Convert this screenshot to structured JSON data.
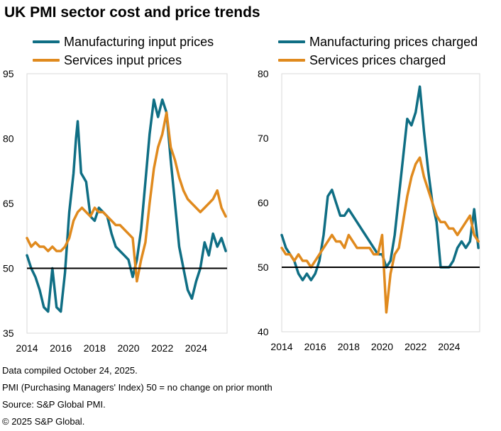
{
  "header": {
    "title": "UK PMI sector cost and price trends"
  },
  "colors": {
    "manufacturing": "#0f6e84",
    "services": "#e08a1e",
    "axis": "#000000",
    "frame": "#d9d9d9"
  },
  "footer": {
    "line1": "Data compiled October 24, 2025.",
    "line2": "PMI (Purchasing Managers' Index) 50 = no change on prior month",
    "line3": "Source: S&P Global PMI.",
    "line4": "© 2025 S&P Global."
  },
  "chart_data": [
    {
      "type": "line",
      "title": "",
      "legend": [
        "Manufacturing input prices",
        "Services input prices"
      ],
      "legend_placement": "top",
      "xlabel": "",
      "ylabel": "",
      "xlim": [
        2014.0,
        2025.83
      ],
      "ylim": [
        35,
        95
      ],
      "yticks": [
        35,
        50,
        65,
        80,
        95
      ],
      "xticks": [
        "2014",
        "2016",
        "2018",
        "2020",
        "2022",
        "2024"
      ],
      "reference_line": 50,
      "grid": false,
      "series": [
        {
          "name": "Manufacturing input prices",
          "x": [
            2014.0,
            2014.25,
            2014.5,
            2014.75,
            2015.0,
            2015.25,
            2015.5,
            2015.75,
            2016.0,
            2016.25,
            2016.5,
            2016.75,
            2016.9,
            2017.0,
            2017.2,
            2017.5,
            2017.75,
            2018.0,
            2018.25,
            2018.5,
            2018.75,
            2019.0,
            2019.25,
            2019.5,
            2019.75,
            2020.0,
            2020.25,
            2020.5,
            2020.75,
            2021.0,
            2021.25,
            2021.5,
            2021.75,
            2022.0,
            2022.25,
            2022.5,
            2022.75,
            2023.0,
            2023.25,
            2023.5,
            2023.75,
            2024.0,
            2024.25,
            2024.5,
            2024.75,
            2025.0,
            2025.25,
            2025.5,
            2025.75
          ],
          "values": [
            53,
            50,
            48,
            45,
            41,
            40,
            50,
            41,
            40,
            49,
            63,
            72,
            80,
            84,
            72,
            70,
            62,
            61,
            64,
            63,
            62,
            58,
            55,
            54,
            53,
            52,
            48,
            52,
            59,
            70,
            81,
            89,
            85,
            89,
            86,
            75,
            65,
            55,
            50,
            45,
            43,
            47,
            50,
            56,
            53,
            58,
            55,
            57,
            54
          ]
        },
        {
          "name": "Services input prices",
          "x": [
            2014.0,
            2014.25,
            2014.5,
            2014.75,
            2015.0,
            2015.25,
            2015.5,
            2015.75,
            2016.0,
            2016.25,
            2016.5,
            2016.75,
            2017.0,
            2017.25,
            2017.5,
            2017.75,
            2018.0,
            2018.25,
            2018.5,
            2018.75,
            2019.0,
            2019.25,
            2019.5,
            2019.75,
            2020.0,
            2020.25,
            2020.5,
            2020.75,
            2021.0,
            2021.25,
            2021.5,
            2021.75,
            2022.0,
            2022.25,
            2022.5,
            2022.75,
            2023.0,
            2023.25,
            2023.5,
            2023.75,
            2024.0,
            2024.25,
            2024.5,
            2024.75,
            2025.0,
            2025.25,
            2025.5,
            2025.75
          ],
          "values": [
            57,
            55,
            56,
            55,
            55,
            54,
            55,
            54,
            54,
            55,
            57,
            61,
            63,
            64,
            63,
            62,
            64,
            63,
            63,
            62,
            61,
            60,
            60,
            59,
            58,
            57,
            47,
            52,
            56,
            65,
            73,
            78,
            81,
            86,
            78,
            75,
            71,
            68,
            66,
            65,
            64,
            63,
            64,
            65,
            66,
            68,
            64,
            62
          ]
        }
      ]
    },
    {
      "type": "line",
      "title": "",
      "legend": [
        "Manufacturing prices charged",
        "Services prices charged"
      ],
      "legend_placement": "top",
      "xlabel": "",
      "ylabel": "",
      "xlim": [
        2014.0,
        2025.83
      ],
      "ylim": [
        40,
        80
      ],
      "yticks": [
        40,
        50,
        60,
        70,
        80
      ],
      "xticks": [
        "2014",
        "2016",
        "2018",
        "2020",
        "2022",
        "2024"
      ],
      "reference_line": 50,
      "grid": false,
      "series": [
        {
          "name": "Manufacturing prices charged",
          "x": [
            2014.0,
            2014.25,
            2014.5,
            2014.75,
            2015.0,
            2015.25,
            2015.5,
            2015.75,
            2016.0,
            2016.25,
            2016.5,
            2016.75,
            2017.0,
            2017.25,
            2017.5,
            2017.75,
            2018.0,
            2018.25,
            2018.5,
            2018.75,
            2019.0,
            2019.25,
            2019.5,
            2019.75,
            2020.0,
            2020.25,
            2020.5,
            2020.75,
            2021.0,
            2021.25,
            2021.5,
            2021.75,
            2022.0,
            2022.25,
            2022.5,
            2022.75,
            2023.0,
            2023.25,
            2023.5,
            2023.75,
            2024.0,
            2024.25,
            2024.5,
            2024.75,
            2025.0,
            2025.25,
            2025.5,
            2025.75
          ],
          "values": [
            55,
            53,
            52,
            51,
            49,
            48,
            49,
            48,
            49,
            51,
            55,
            61,
            62,
            60,
            58,
            58,
            59,
            58,
            57,
            56,
            55,
            54,
            53,
            52,
            52,
            50,
            51,
            55,
            61,
            67,
            73,
            72,
            74,
            78,
            71,
            65,
            60,
            57,
            50,
            50,
            50,
            51,
            53,
            54,
            53,
            54,
            59,
            53
          ]
        },
        {
          "name": "Services prices charged",
          "x": [
            2014.0,
            2014.25,
            2014.5,
            2014.75,
            2015.0,
            2015.25,
            2015.5,
            2015.75,
            2016.0,
            2016.25,
            2016.5,
            2016.75,
            2017.0,
            2017.25,
            2017.5,
            2017.75,
            2018.0,
            2018.25,
            2018.5,
            2018.75,
            2019.0,
            2019.25,
            2019.5,
            2019.75,
            2020.0,
            2020.25,
            2020.5,
            2020.75,
            2021.0,
            2021.25,
            2021.5,
            2021.75,
            2022.0,
            2022.25,
            2022.5,
            2022.75,
            2023.0,
            2023.25,
            2023.5,
            2023.75,
            2024.0,
            2024.25,
            2024.5,
            2024.75,
            2025.0,
            2025.25,
            2025.5,
            2025.75
          ],
          "values": [
            53,
            52,
            52,
            51,
            52,
            51,
            51,
            50,
            51,
            52,
            53,
            54,
            55,
            54,
            54,
            53,
            55,
            54,
            53,
            53,
            53,
            53,
            52,
            52,
            55,
            43,
            49,
            52,
            53,
            57,
            61,
            64,
            66,
            67,
            64,
            62,
            60,
            58,
            57,
            57,
            56,
            56,
            55,
            56,
            57,
            58,
            55,
            54
          ]
        }
      ]
    }
  ]
}
